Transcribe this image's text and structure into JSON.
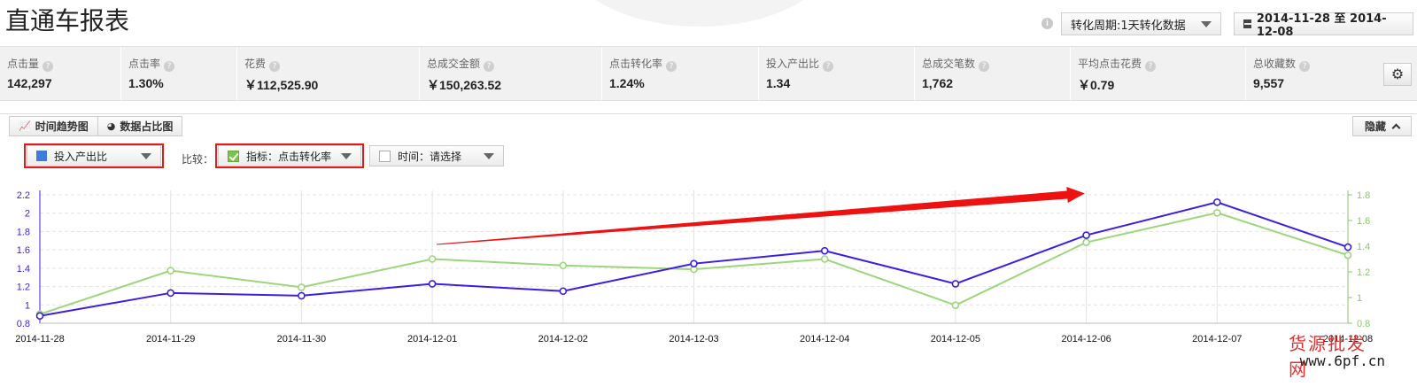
{
  "page": {
    "title": "直通车报表"
  },
  "header": {
    "period_select": "转化周期:1天转化数据",
    "date_range": "2014-11-28 至 2014-12-08"
  },
  "metrics": [
    {
      "label": "点击量",
      "value": "142,297"
    },
    {
      "label": "点击率",
      "value": "1.30%"
    },
    {
      "label": "花费",
      "value": "￥112,525.90"
    },
    {
      "label": "总成交金额",
      "value": "￥150,263.52"
    },
    {
      "label": "点击转化率",
      "value": "1.24%"
    },
    {
      "label": "投入产出比",
      "value": "1.34"
    },
    {
      "label": "总成交笔数",
      "value": "1,762"
    },
    {
      "label": "平均点击花费",
      "value": "￥0.79"
    },
    {
      "label": "总收藏数",
      "value": "9,557"
    }
  ],
  "tabs": [
    {
      "label": "时间趋势图"
    },
    {
      "label": "数据占比图"
    }
  ],
  "hide_button": "隐藏",
  "controls": {
    "primary_metric": "投入产出比",
    "primary_color": "#3b7dd8",
    "compare_label": "比较：",
    "compare_metric": "指标：点击转化率",
    "compare_time": "时间：请选择"
  },
  "colors": {
    "series_1": "#3a1fe0",
    "series_2": "#9cd67a",
    "annotation": "#ee1111"
  },
  "watermark": {
    "line1": "货源批发网",
    "line2": "www.6pf.cn"
  },
  "chart_data": {
    "type": "line",
    "x": [
      "2014-11-28",
      "2014-11-29",
      "2014-11-30",
      "2014-12-01",
      "2014-12-02",
      "2014-12-03",
      "2014-12-04",
      "2014-12-05",
      "2014-12-06",
      "2014-12-07",
      "2014-12-08"
    ],
    "series": [
      {
        "name": "投入产出比",
        "axis": "left",
        "values": [
          0.88,
          1.13,
          1.1,
          1.23,
          1.15,
          1.45,
          1.59,
          1.23,
          1.76,
          2.12,
          1.63
        ]
      },
      {
        "name": "点击转化率",
        "axis": "right",
        "values": [
          0.87,
          1.21,
          1.08,
          1.3,
          1.25,
          1.22,
          1.3,
          0.94,
          1.43,
          1.66,
          1.33
        ]
      }
    ],
    "y_left": {
      "ticks": [
        "2.2",
        "2",
        "1.8",
        "1.6",
        "1.4",
        "1.2",
        "1",
        "0.8"
      ],
      "range": [
        0.8,
        2.2
      ]
    },
    "y_right": {
      "ticks": [
        "1.8",
        "1.6",
        "1.4",
        "1.2",
        "1",
        "0.8"
      ],
      "range": [
        0.8,
        1.8
      ]
    },
    "grid": true
  }
}
